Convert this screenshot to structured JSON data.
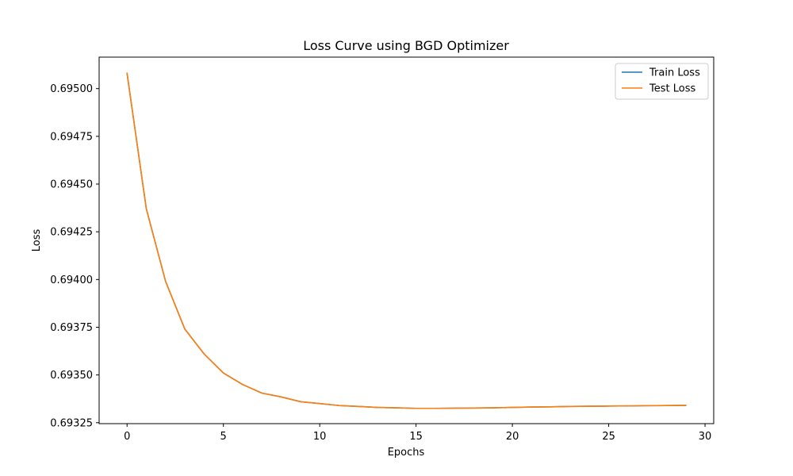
{
  "chart_data": {
    "type": "line",
    "title": "Loss Curve using BGD Optimizer",
    "xlabel": "Epochs",
    "ylabel": "Loss",
    "xlim": [
      -1.45,
      30.45
    ],
    "ylim": [
      0.693245,
      0.695165
    ],
    "xticks": [
      0,
      5,
      10,
      15,
      20,
      25,
      30
    ],
    "xtick_labels": [
      "0",
      "5",
      "10",
      "15",
      "20",
      "25",
      "30"
    ],
    "yticks": [
      0.69325,
      0.6935,
      0.69375,
      0.694,
      0.69425,
      0.6945,
      0.69475,
      0.695
    ],
    "ytick_labels": [
      "0.69325",
      "0.69350",
      "0.69375",
      "0.69400",
      "0.69425",
      "0.69450",
      "0.69475",
      "0.69500"
    ],
    "grid": false,
    "legend_position": "top-right",
    "x": [
      0,
      1,
      2,
      3,
      4,
      5,
      6,
      7,
      8,
      9,
      10,
      11,
      12,
      13,
      14,
      15,
      16,
      17,
      18,
      19,
      20,
      21,
      22,
      23,
      24,
      25,
      26,
      27,
      28,
      29
    ],
    "series": [
      {
        "name": "Train Loss",
        "color": "#1f77b4",
        "values": [
          0.69508,
          0.69437,
          0.69399,
          0.69374,
          0.69361,
          0.69351,
          0.69345,
          0.693405,
          0.693385,
          0.69336,
          0.69335,
          0.69334,
          0.693335,
          0.69333,
          0.693328,
          0.693325,
          0.693325,
          0.693326,
          0.693327,
          0.693328,
          0.69333,
          0.693332,
          0.693333,
          0.693335,
          0.693336,
          0.693337,
          0.693338,
          0.693339,
          0.69334,
          0.693341
        ]
      },
      {
        "name": "Test Loss",
        "color": "#ff7f0e",
        "values": [
          0.69508,
          0.69437,
          0.69399,
          0.69374,
          0.69361,
          0.69351,
          0.69345,
          0.693405,
          0.693385,
          0.69336,
          0.69335,
          0.69334,
          0.693335,
          0.69333,
          0.693328,
          0.693325,
          0.693325,
          0.693326,
          0.693327,
          0.693328,
          0.69333,
          0.693332,
          0.693333,
          0.693335,
          0.693336,
          0.693337,
          0.693338,
          0.693339,
          0.69334,
          0.693341
        ]
      }
    ]
  }
}
